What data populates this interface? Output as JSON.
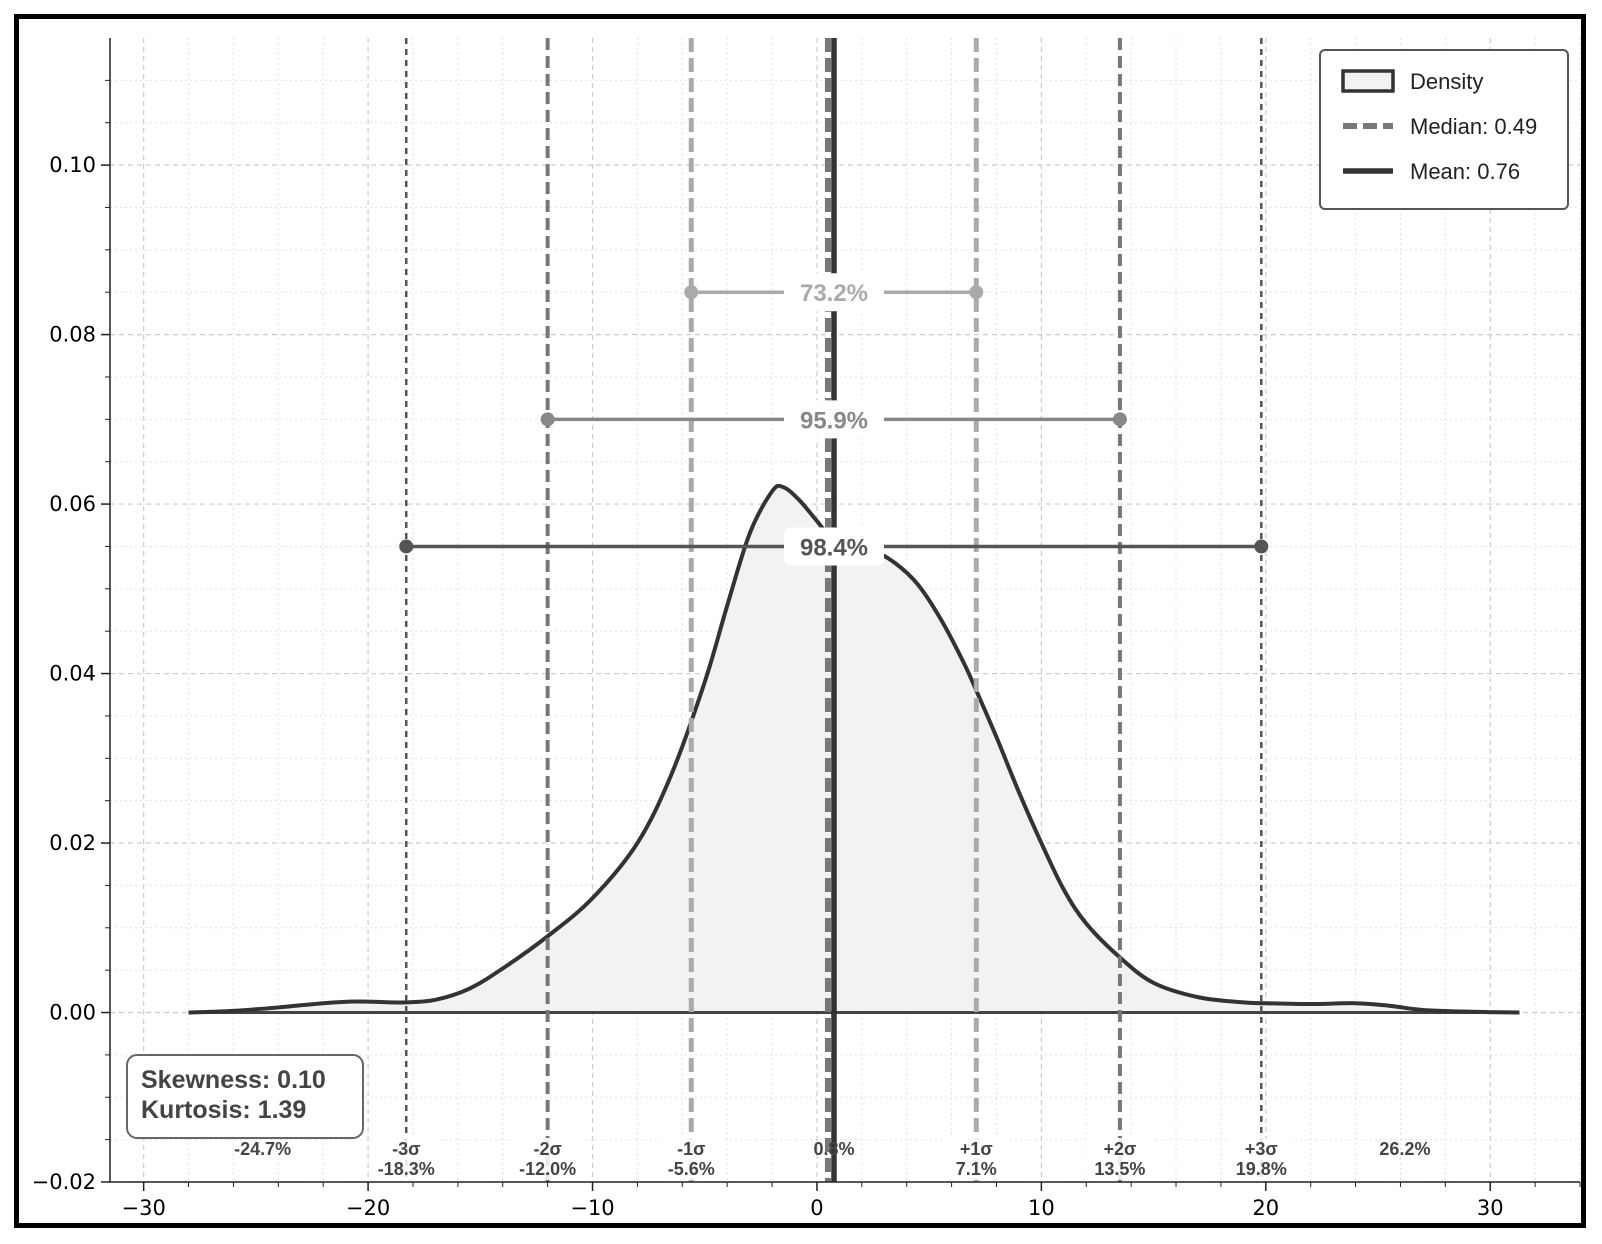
{
  "chart_data": {
    "type": "area",
    "title": "",
    "xlabel": "",
    "ylabel": "",
    "xlim": [
      -31.5,
      34.0
    ],
    "ylim": [
      -0.02,
      0.115
    ],
    "x_ticks": [
      {
        "value": -30,
        "label": "−30"
      },
      {
        "value": -20,
        "label": "−20"
      },
      {
        "value": -10,
        "label": "−10"
      },
      {
        "value": 0,
        "label": "0"
      },
      {
        "value": 10,
        "label": "10"
      },
      {
        "value": 20,
        "label": "20"
      },
      {
        "value": 30,
        "label": "30"
      }
    ],
    "y_ticks": [
      {
        "value": -0.02,
        "label": "−0.02"
      },
      {
        "value": 0.0,
        "label": "0.00"
      },
      {
        "value": 0.02,
        "label": "0.02"
      },
      {
        "value": 0.04,
        "label": "0.04"
      },
      {
        "value": 0.06,
        "label": "0.06"
      },
      {
        "value": 0.08,
        "label": "0.08"
      },
      {
        "value": 0.1,
        "label": "0.10"
      }
    ],
    "grid": true,
    "legend_position": "top-right",
    "series": [
      {
        "name": "Density",
        "x": [
          -28.0,
          -26.0,
          -24.0,
          -22.0,
          -20.5,
          -19.0,
          -18.3,
          -17.0,
          -15.5,
          -14.0,
          -12.0,
          -10.0,
          -8.0,
          -6.5,
          -5.0,
          -4.0,
          -3.0,
          -2.0,
          -1.5,
          -0.8,
          0.0,
          0.8,
          1.5,
          2.5,
          3.5,
          4.5,
          5.5,
          6.5,
          7.1,
          8.0,
          9.0,
          10.0,
          11.0,
          12.0,
          13.5,
          15.0,
          17.0,
          19.0,
          20.0,
          22.0,
          24.0,
          25.5,
          27.0,
          29.0,
          31.3
        ],
        "y": [
          0.0,
          0.0002,
          0.0006,
          0.0011,
          0.0013,
          0.0012,
          0.0012,
          0.0015,
          0.0028,
          0.0052,
          0.009,
          0.0135,
          0.02,
          0.028,
          0.039,
          0.048,
          0.0565,
          0.0615,
          0.062,
          0.0605,
          0.058,
          0.0555,
          0.055,
          0.0545,
          0.053,
          0.0505,
          0.0465,
          0.0415,
          0.038,
          0.0325,
          0.026,
          0.02,
          0.0145,
          0.0105,
          0.0065,
          0.0035,
          0.0018,
          0.0012,
          0.0011,
          0.001,
          0.0011,
          0.0008,
          0.0003,
          0.0001,
          0.0
        ]
      }
    ],
    "median": 0.49,
    "mean": 0.76,
    "sigma_lines": [
      {
        "x": -18.3,
        "name": "-3σ",
        "value": "-18.3%",
        "color": "#555555",
        "width": 2.5,
        "dash": "6 5"
      },
      {
        "x": -12.0,
        "name": "-2σ",
        "value": "-12.0%",
        "color": "#777777",
        "width": 4,
        "dash": "12 6"
      },
      {
        "x": -5.6,
        "name": "-1σ",
        "value": "-5.6%",
        "color": "#aaaaaa",
        "width": 5,
        "dash": "14 6"
      },
      {
        "x": 7.1,
        "name": "+1σ",
        "value": "7.1%",
        "color": "#aaaaaa",
        "width": 5,
        "dash": "14 6"
      },
      {
        "x": 13.5,
        "name": "+2σ",
        "value": "13.5%",
        "color": "#777777",
        "width": 4,
        "dash": "12 6"
      },
      {
        "x": 19.8,
        "name": "+3σ",
        "value": "19.8%",
        "color": "#555555",
        "width": 2.5,
        "dash": "6 5"
      }
    ],
    "center_label": "0.8%",
    "edge_labels": [
      {
        "x": -24.7,
        "text": "-24.7%"
      },
      {
        "x": 26.2,
        "text": "26.2%"
      }
    ],
    "intervals": [
      {
        "from": -5.6,
        "to": 7.1,
        "y": 0.085,
        "label": "73.2%",
        "color": "#aaaaaa"
      },
      {
        "from": -12.0,
        "to": 13.5,
        "y": 0.07,
        "label": "95.9%",
        "color": "#888888"
      },
      {
        "from": -18.3,
        "to": 19.8,
        "y": 0.055,
        "label": "98.4%",
        "color": "#555555"
      }
    ],
    "legend": [
      {
        "key": "density",
        "label": "Density"
      },
      {
        "key": "median",
        "label": "Median: 0.49"
      },
      {
        "key": "mean",
        "label": "Mean: 0.76"
      }
    ],
    "stats": {
      "skewness": "Skewness: 0.10",
      "kurtosis": "Kurtosis: 1.39"
    }
  }
}
